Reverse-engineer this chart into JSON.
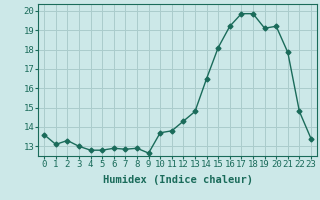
{
  "x": [
    0,
    1,
    2,
    3,
    4,
    5,
    6,
    7,
    8,
    9,
    10,
    11,
    12,
    13,
    14,
    15,
    16,
    17,
    18,
    19,
    20,
    21,
    22,
    23
  ],
  "y": [
    13.6,
    13.1,
    13.3,
    13.0,
    12.8,
    12.8,
    12.9,
    12.85,
    12.9,
    12.65,
    13.7,
    13.8,
    14.3,
    14.8,
    16.5,
    18.1,
    19.2,
    19.85,
    19.85,
    19.1,
    19.2,
    17.85,
    14.8,
    13.4
  ],
  "line_color": "#1a6b5a",
  "marker": "D",
  "marker_size": 2.5,
  "bg_color": "#cce8e8",
  "grid_color": "#aacccc",
  "xlabel": "Humidex (Indice chaleur)",
  "ylim": [
    12.5,
    20.35
  ],
  "yticks": [
    13,
    14,
    15,
    16,
    17,
    18,
    19,
    20
  ],
  "xticks": [
    0,
    1,
    2,
    3,
    4,
    5,
    6,
    7,
    8,
    9,
    10,
    11,
    12,
    13,
    14,
    15,
    16,
    17,
    18,
    19,
    20,
    21,
    22,
    23
  ],
  "xlabel_fontsize": 7.5,
  "tick_fontsize": 6.5,
  "line_width": 1.0
}
